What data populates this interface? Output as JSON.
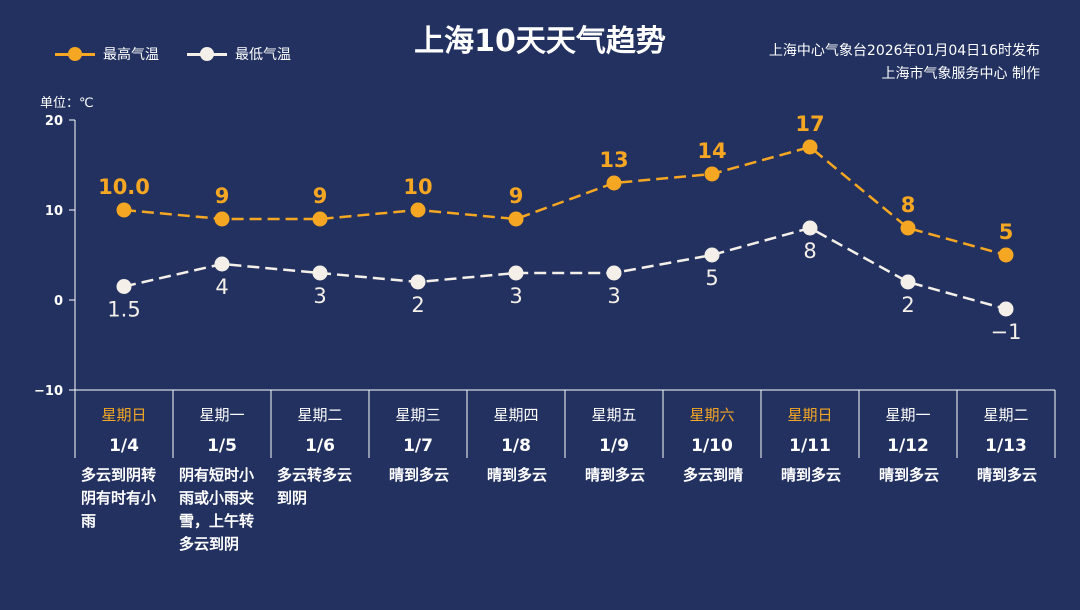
{
  "title": "上海10天天气趋势",
  "source_line1": "上海中心气象台2026年01月04日16时发布",
  "source_line2": "上海市气象服务中心 制作",
  "unit_label": "单位：℃",
  "colors": {
    "background": "#22315f",
    "high": "#f5a623",
    "low": "#f4efe9",
    "weekend": "#f5a623"
  },
  "chart_data": {
    "type": "line",
    "title": "上海10天天气趋势",
    "ylim": [
      -10,
      20
    ],
    "yticks": [
      "20",
      "10",
      "0",
      "−10"
    ],
    "ytick_values": [
      20,
      10,
      0,
      -10
    ],
    "categories": [
      "1/4",
      "1/5",
      "1/6",
      "1/7",
      "1/8",
      "1/9",
      "1/10",
      "1/11",
      "1/12",
      "1/13"
    ],
    "weekdays": [
      "星期日",
      "星期一",
      "星期二",
      "星期三",
      "星期四",
      "星期五",
      "星期六",
      "星期日",
      "星期一",
      "星期二"
    ],
    "weekend": [
      true,
      false,
      false,
      false,
      false,
      false,
      true,
      true,
      false,
      false
    ],
    "weather": [
      "多云到阴转阴有时有小雨",
      "阴有短时小雨或小雨夹雪，上午转多云到阴",
      "多云转多云到阴",
      "晴到多云",
      "晴到多云",
      "晴到多云",
      "多云到晴",
      "晴到多云",
      "晴到多云",
      "晴到多云"
    ],
    "legend_placement": "top-left",
    "series": [
      {
        "name": "最高气温",
        "values": [
          10.0,
          9,
          9,
          10,
          9,
          13,
          14,
          17,
          8,
          5
        ],
        "labels": [
          "10.0",
          "9",
          "9",
          "10",
          "9",
          "13",
          "14",
          "17",
          "8",
          "5"
        ],
        "line_style": "dashed"
      },
      {
        "name": "最低气温",
        "values": [
          1.5,
          4,
          3,
          2,
          3,
          3,
          5,
          8,
          2,
          -1
        ],
        "labels": [
          "1.5",
          "4",
          "3",
          "2",
          "3",
          "3",
          "5",
          "8",
          "2",
          "−1"
        ],
        "line_style": "dashed"
      }
    ]
  }
}
